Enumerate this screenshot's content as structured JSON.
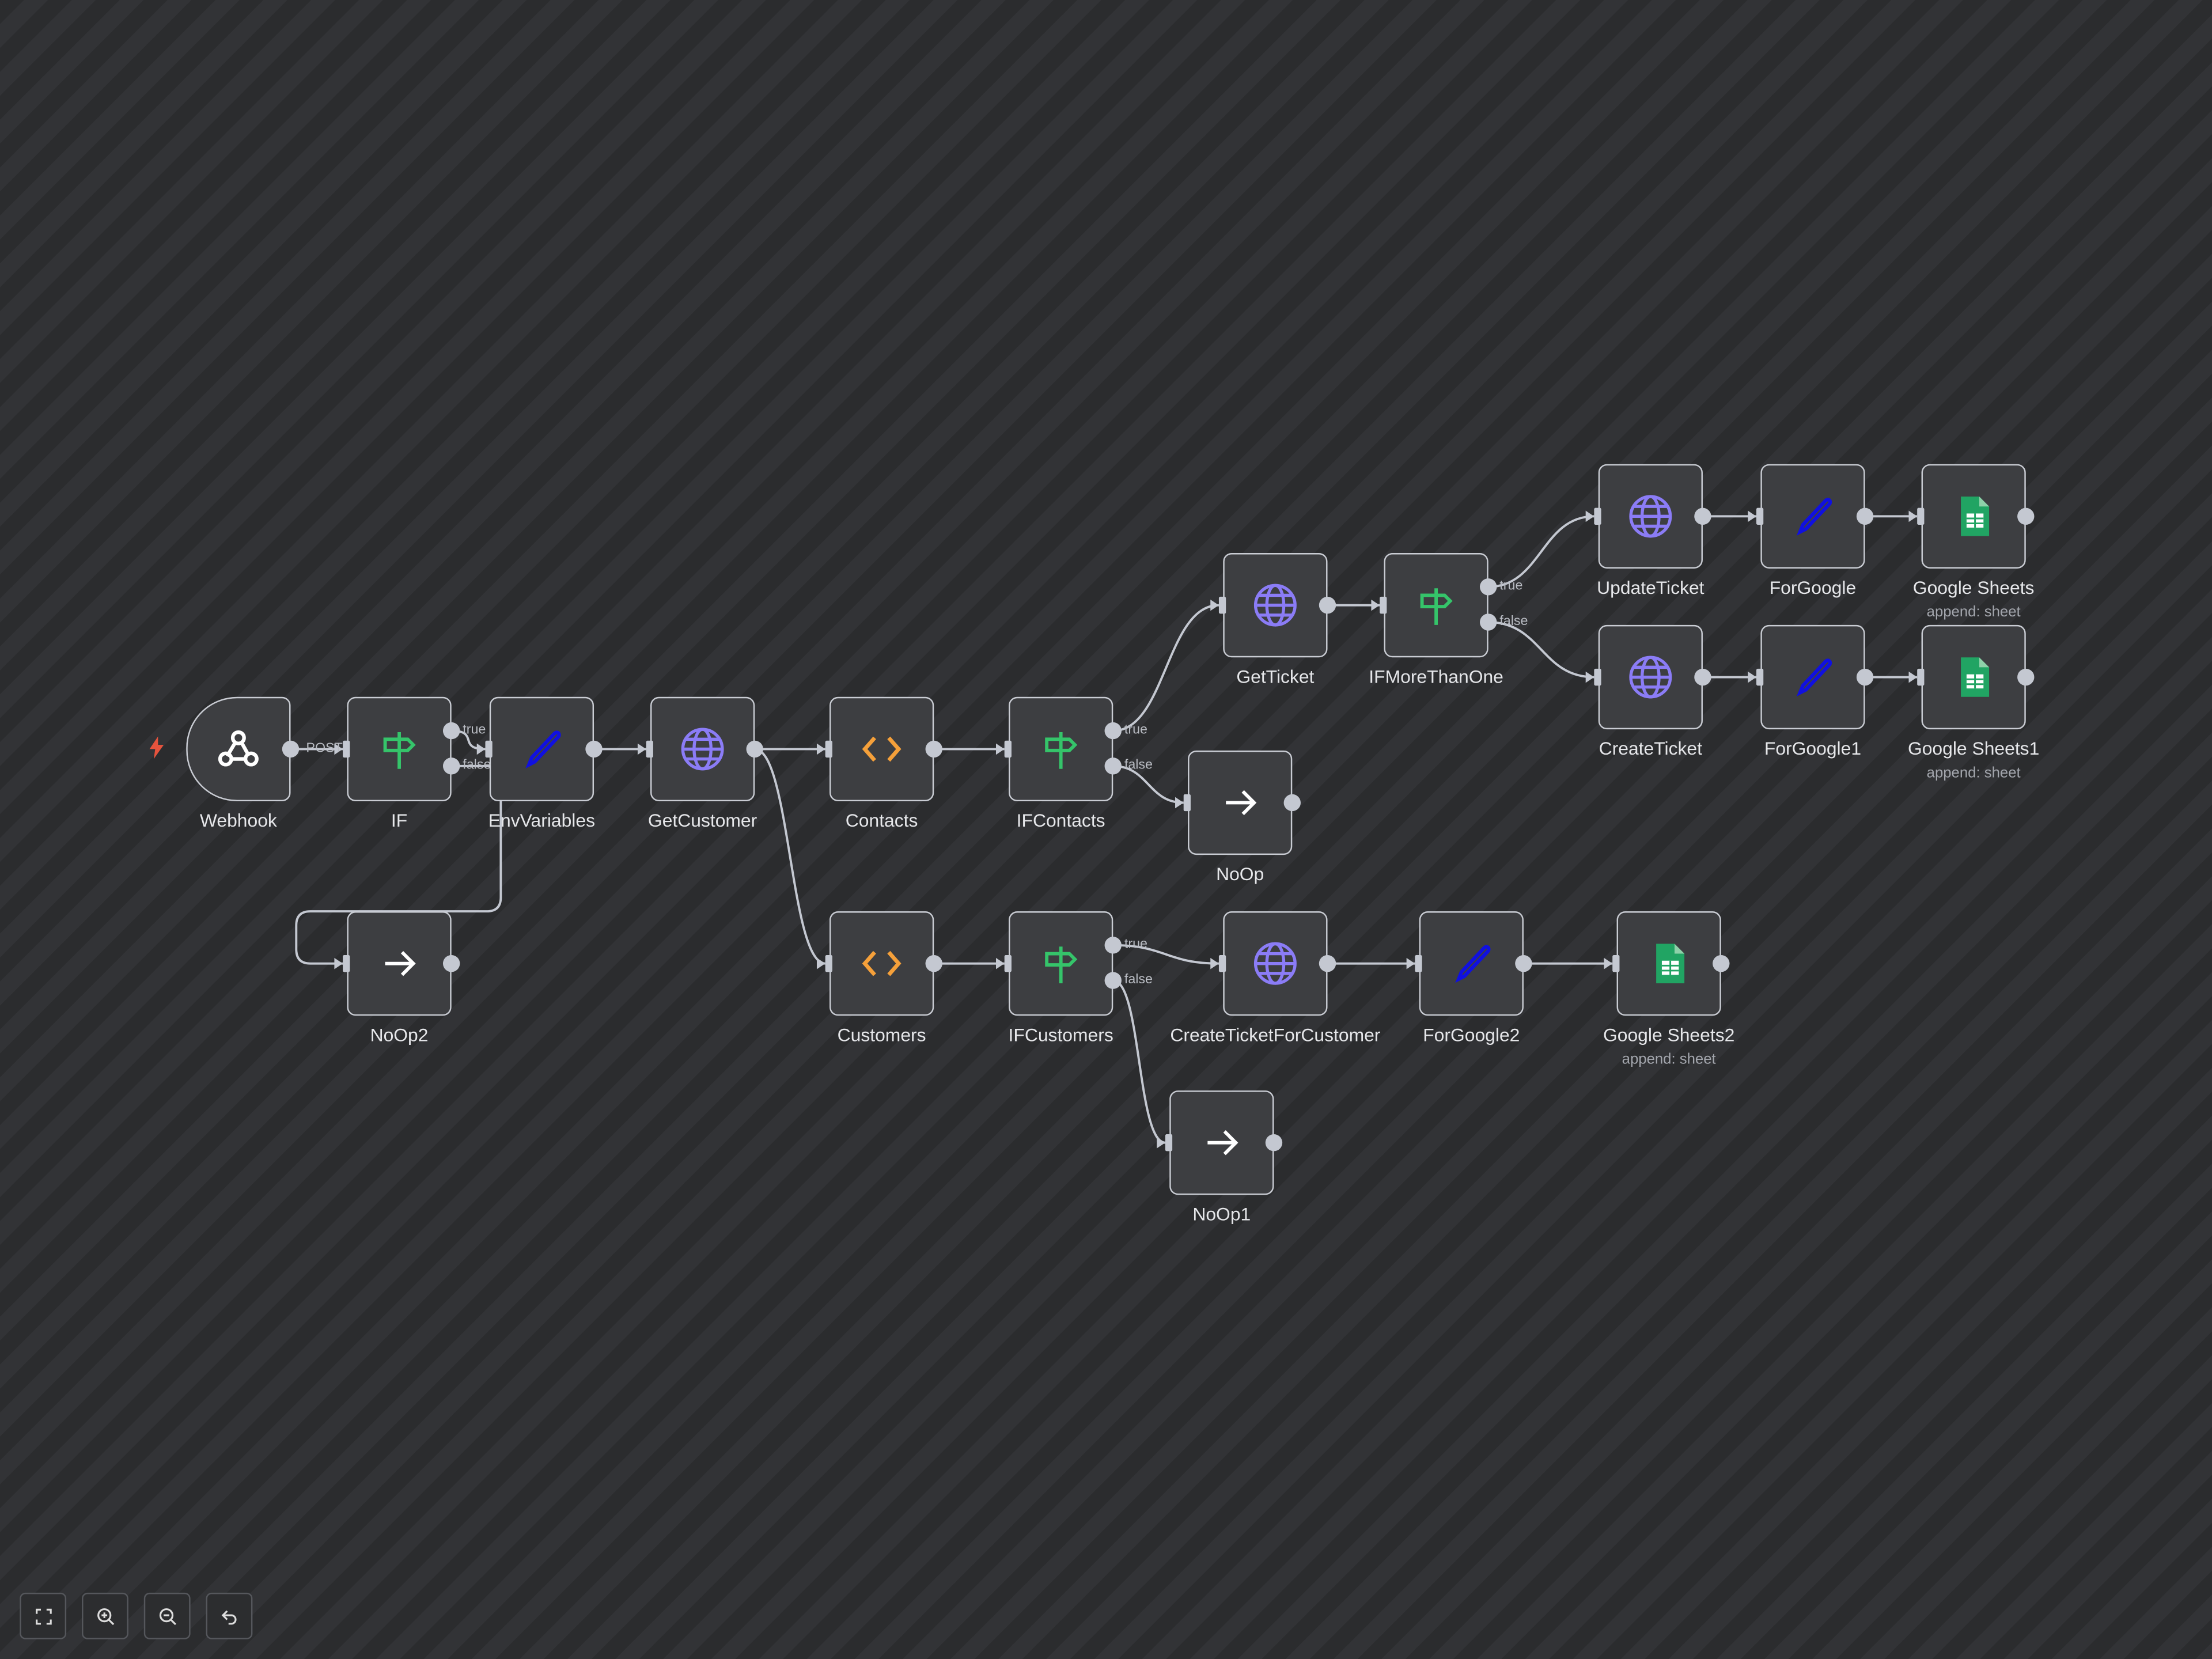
{
  "nodes": [
    {
      "id": "webhook",
      "label": "Webhook",
      "type": "webhook",
      "trigger": true
    },
    {
      "id": "if",
      "label": "IF",
      "type": "if"
    },
    {
      "id": "envvariables",
      "label": "EnvVariables",
      "type": "set"
    },
    {
      "id": "getcustomer",
      "label": "GetCustomer",
      "type": "http"
    },
    {
      "id": "contacts",
      "label": "Contacts",
      "type": "code"
    },
    {
      "id": "ifcontacts",
      "label": "IFContacts",
      "type": "if"
    },
    {
      "id": "noop",
      "label": "NoOp",
      "type": "noop"
    },
    {
      "id": "getticket",
      "label": "GetTicket",
      "type": "http"
    },
    {
      "id": "ifmorethanone",
      "label": "IFMoreThanOne",
      "type": "if"
    },
    {
      "id": "updateticket",
      "label": "UpdateTicket",
      "type": "http"
    },
    {
      "id": "forgoogle",
      "label": "ForGoogle",
      "type": "set"
    },
    {
      "id": "googlesheets",
      "label": "Google Sheets",
      "subtitle": "append: sheet",
      "type": "sheets"
    },
    {
      "id": "createticket",
      "label": "CreateTicket",
      "type": "http"
    },
    {
      "id": "forgoogle1",
      "label": "ForGoogle1",
      "type": "set"
    },
    {
      "id": "googlesheets1",
      "label": "Google Sheets1",
      "subtitle": "append: sheet",
      "type": "sheets"
    },
    {
      "id": "noop2",
      "label": "NoOp2",
      "type": "noop"
    },
    {
      "id": "customers",
      "label": "Customers",
      "type": "code"
    },
    {
      "id": "ifcustomers",
      "label": "IFCustomers",
      "type": "if"
    },
    {
      "id": "createticketforcustomer",
      "label": "CreateTicketForCustomer",
      "type": "http"
    },
    {
      "id": "forgoogle2",
      "label": "ForGoogle2",
      "type": "set"
    },
    {
      "id": "googlesheets2",
      "label": "Google Sheets2",
      "subtitle": "append: sheet",
      "type": "sheets"
    },
    {
      "id": "noop1",
      "label": "NoOp1",
      "type": "noop"
    }
  ],
  "edges": [
    {
      "from": "webhook",
      "to": "if",
      "label": "POST"
    },
    {
      "from": "if",
      "port": "true",
      "to": "envvariables",
      "label": "true"
    },
    {
      "from": "if",
      "port": "false",
      "to": "noop2",
      "label": "false"
    },
    {
      "from": "envvariables",
      "to": "getcustomer"
    },
    {
      "from": "getcustomer",
      "to": "contacts"
    },
    {
      "from": "getcustomer",
      "to": "customers"
    },
    {
      "from": "contacts",
      "to": "ifcontacts"
    },
    {
      "from": "ifcontacts",
      "port": "true",
      "to": "getticket",
      "label": "true"
    },
    {
      "from": "ifcontacts",
      "port": "false",
      "to": "noop",
      "label": "false"
    },
    {
      "from": "getticket",
      "to": "ifmorethanone"
    },
    {
      "from": "ifmorethanone",
      "port": "true",
      "to": "updateticket",
      "label": "true"
    },
    {
      "from": "ifmorethanone",
      "port": "false",
      "to": "createticket",
      "label": "false"
    },
    {
      "from": "updateticket",
      "to": "forgoogle"
    },
    {
      "from": "forgoogle",
      "to": "googlesheets"
    },
    {
      "from": "createticket",
      "to": "forgoogle1"
    },
    {
      "from": "forgoogle1",
      "to": "googlesheets1"
    },
    {
      "from": "customers",
      "to": "ifcustomers"
    },
    {
      "from": "ifcustomers",
      "port": "true",
      "to": "createticketforcustomer",
      "label": "true"
    },
    {
      "from": "ifcustomers",
      "port": "false",
      "to": "noop1",
      "label": "false"
    },
    {
      "from": "createticketforcustomer",
      "to": "forgoogle2"
    },
    {
      "from": "forgoogle2",
      "to": "googlesheets2"
    }
  ],
  "controls": [
    {
      "id": "fit-view",
      "icon": "fit-view-icon"
    },
    {
      "id": "zoom-in",
      "icon": "zoom-in-icon"
    },
    {
      "id": "zoom-out",
      "icon": "zoom-out-icon"
    },
    {
      "id": "reset-zoom",
      "icon": "undo-icon"
    }
  ],
  "colors": {
    "if": "#35c46a",
    "http": "#8b7cf6",
    "code": "#f5a03a",
    "set": "#1010e0",
    "sheets": "#21a463",
    "trigger": "#e5533d"
  }
}
